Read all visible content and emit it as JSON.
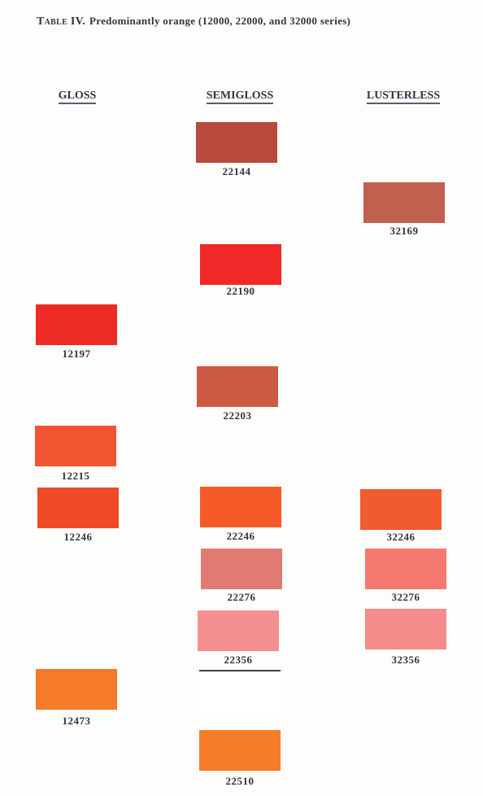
{
  "title": {
    "label": "Table IV.",
    "text": "Predominantly orange (12000, 22000, and 32000 series)"
  },
  "columns": [
    {
      "heading": "GLOSS",
      "swatches": [
        {
          "code": "12197",
          "color": "#ee2a24"
        },
        {
          "code": "12215",
          "color": "#f05530"
        },
        {
          "code": "12246",
          "color": "#ee4a28"
        },
        {
          "code": "12473",
          "color": "#f57a2a"
        }
      ]
    },
    {
      "heading": "SEMIGLOSS",
      "swatches": [
        {
          "code": "22144",
          "color": "#b84a3e"
        },
        {
          "code": "22190",
          "color": "#f02828"
        },
        {
          "code": "22203",
          "color": "#cc5a44"
        },
        {
          "code": "22246",
          "color": "#f65a28"
        },
        {
          "code": "22276",
          "color": "#e07a72"
        },
        {
          "code": "22356",
          "color": "#f49090"
        },
        {
          "code": "22510",
          "color": "#f57c2a"
        }
      ]
    },
    {
      "heading": "LUSTERLESS",
      "swatches": [
        {
          "code": "32169",
          "color": "#c0604e"
        },
        {
          "code": "32246",
          "color": "#f25a30"
        },
        {
          "code": "32276",
          "color": "#f47a70"
        },
        {
          "code": "32356",
          "color": "#f48c8c"
        }
      ]
    }
  ]
}
